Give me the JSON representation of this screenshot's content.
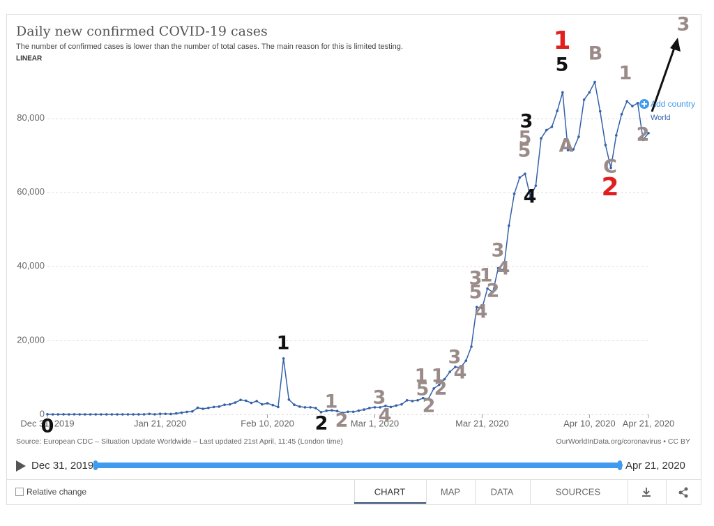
{
  "chart_data": {
    "type": "line",
    "title": "Daily new confirmed COVID-19 cases",
    "subtitle": "The number of confirmed cases is lower than the number of total cases. The main reason for this is limited testing.",
    "scale_label": "LINEAR",
    "x": [
      "2019-12-31",
      "2020-01-01",
      "2020-01-02",
      "2020-01-03",
      "2020-01-04",
      "2020-01-05",
      "2020-01-06",
      "2020-01-07",
      "2020-01-08",
      "2020-01-09",
      "2020-01-10",
      "2020-01-11",
      "2020-01-12",
      "2020-01-13",
      "2020-01-14",
      "2020-01-15",
      "2020-01-16",
      "2020-01-17",
      "2020-01-18",
      "2020-01-19",
      "2020-01-20",
      "2020-01-21",
      "2020-01-22",
      "2020-01-23",
      "2020-01-24",
      "2020-01-25",
      "2020-01-26",
      "2020-01-27",
      "2020-01-28",
      "2020-01-29",
      "2020-01-30",
      "2020-01-31",
      "2020-02-01",
      "2020-02-02",
      "2020-02-03",
      "2020-02-04",
      "2020-02-05",
      "2020-02-06",
      "2020-02-07",
      "2020-02-08",
      "2020-02-09",
      "2020-02-10",
      "2020-02-11",
      "2020-02-12",
      "2020-02-13",
      "2020-02-14",
      "2020-02-15",
      "2020-02-16",
      "2020-02-17",
      "2020-02-18",
      "2020-02-19",
      "2020-02-20",
      "2020-02-21",
      "2020-02-22",
      "2020-02-23",
      "2020-02-24",
      "2020-02-25",
      "2020-02-26",
      "2020-02-27",
      "2020-02-28",
      "2020-02-29",
      "2020-03-01",
      "2020-03-02",
      "2020-03-03",
      "2020-03-04",
      "2020-03-05",
      "2020-03-06",
      "2020-03-07",
      "2020-03-08",
      "2020-03-09",
      "2020-03-10",
      "2020-03-11",
      "2020-03-12",
      "2020-03-13",
      "2020-03-14",
      "2020-03-15",
      "2020-03-16",
      "2020-03-17",
      "2020-03-18",
      "2020-03-19",
      "2020-03-20",
      "2020-03-21",
      "2020-03-22",
      "2020-03-23",
      "2020-03-24",
      "2020-03-25",
      "2020-03-26",
      "2020-03-27",
      "2020-03-28",
      "2020-03-29",
      "2020-03-30",
      "2020-03-31",
      "2020-04-01",
      "2020-04-02",
      "2020-04-03",
      "2020-04-04",
      "2020-04-05",
      "2020-04-06",
      "2020-04-07",
      "2020-04-08",
      "2020-04-09",
      "2020-04-10",
      "2020-04-11",
      "2020-04-12",
      "2020-04-13",
      "2020-04-14",
      "2020-04-15",
      "2020-04-16",
      "2020-04-17",
      "2020-04-18",
      "2020-04-19",
      "2020-04-20",
      "2020-04-21"
    ],
    "values": [
      27,
      0,
      0,
      17,
      0,
      15,
      0,
      0,
      0,
      0,
      0,
      0,
      0,
      0,
      0,
      0,
      0,
      4,
      17,
      136,
      19,
      151,
      140,
      97,
      266,
      453,
      673,
      800,
      1800,
      1500,
      1750,
      2000,
      2100,
      2600,
      2700,
      3200,
      3900,
      3700,
      3100,
      3600,
      2700,
      3000,
      2500,
      2000,
      15100,
      4000,
      2600,
      2100,
      1900,
      1900,
      1700,
      600,
      1000,
      1100,
      900,
      400,
      700,
      700,
      1000,
      1300,
      1700,
      1900,
      1900,
      2300,
      2000,
      2400,
      2700,
      3800,
      3600,
      3800,
      4400,
      4200,
      7000,
      8000,
      9500,
      11500,
      12800,
      12700,
      14500,
      18300,
      29000,
      28700,
      34000,
      33000,
      39500,
      39000,
      51000,
      59600,
      64000,
      65000,
      58700,
      61800,
      74600,
      76800,
      77700,
      82000,
      87000,
      71400,
      71600,
      75000,
      85000,
      87000,
      89800,
      81900,
      72800,
      66600,
      75400,
      81100,
      84600,
      83300,
      84100,
      74200,
      76000
    ],
    "series_name": "World",
    "color": "#3360a9",
    "xlim": [
      "2019-12-31",
      "2020-04-21"
    ],
    "xticks": [
      {
        "value": "2019-12-31",
        "label": "Dec 31, 2019"
      },
      {
        "value": "2020-01-21",
        "label": "Jan 21, 2020"
      },
      {
        "value": "2020-02-10",
        "label": "Feb 10, 2020"
      },
      {
        "value": "2020-03-01",
        "label": "Mar 1, 2020"
      },
      {
        "value": "2020-03-21",
        "label": "Mar 21, 2020"
      },
      {
        "value": "2020-04-10",
        "label": "Apr 10, 2020"
      },
      {
        "value": "2020-04-21",
        "label": "Apr 21, 2020"
      }
    ],
    "ylim": [
      0,
      95000
    ],
    "yticks": [
      0,
      {
        "value": 20000,
        "label": "20,000"
      },
      {
        "value": 40000,
        "label": "40,000"
      },
      {
        "value": 60000,
        "label": "60,000"
      },
      {
        "value": 80000,
        "label": "80,000"
      }
    ],
    "grid": true,
    "source": "Source: European CDC – Situation Update Worldwide – Last updated 21st April, 11:45 (London time)",
    "credit": "OurWorldInData.org/coronavirus • CC BY",
    "annotations": [
      {
        "text": "0",
        "color": "#111111"
      },
      {
        "text": "1",
        "color": "#111111"
      },
      {
        "text": "2",
        "color": "#111111"
      },
      {
        "text": "1",
        "color": "#9a8b88"
      },
      {
        "text": "2",
        "color": "#9a8b88"
      },
      {
        "text": "3",
        "color": "#9a8b88"
      },
      {
        "text": "4",
        "color": "#9a8b88"
      },
      {
        "text": "1",
        "color": "#9a8b88"
      },
      {
        "text": "5",
        "color": "#9a8b88"
      },
      {
        "text": "2",
        "color": "#9a8b88"
      },
      {
        "text": "1",
        "color": "#9a8b88"
      },
      {
        "text": "2",
        "color": "#9a8b88"
      },
      {
        "text": "3",
        "color": "#9a8b88"
      },
      {
        "text": "4",
        "color": "#9a8b88"
      },
      {
        "text": "3",
        "color": "#9a8b88"
      },
      {
        "text": "5",
        "color": "#9a8b88"
      },
      {
        "text": "4",
        "color": "#9a8b88"
      },
      {
        "text": "1",
        "color": "#9a8b88"
      },
      {
        "text": "2",
        "color": "#9a8b88"
      },
      {
        "text": "3",
        "color": "#9a8b88"
      },
      {
        "text": "4",
        "color": "#9a8b88"
      },
      {
        "text": "3",
        "color": "#111111"
      },
      {
        "text": "5",
        "color": "#9a8b88"
      },
      {
        "text": "5",
        "color": "#9a8b88"
      },
      {
        "text": "4",
        "color": "#111111"
      },
      {
        "text": "1",
        "color": "#e0201f"
      },
      {
        "text": "5",
        "color": "#111111"
      },
      {
        "text": "A",
        "color": "#9a8b88"
      },
      {
        "text": "B",
        "color": "#9a8b88"
      },
      {
        "text": "C",
        "color": "#9a8b88"
      },
      {
        "text": "2",
        "color": "#e0201f"
      },
      {
        "text": "1",
        "color": "#9a8b88"
      },
      {
        "text": "2",
        "color": "#9a8b88"
      },
      {
        "text": "3",
        "color": "#9a8b88"
      }
    ]
  },
  "ui": {
    "add_country": "Add country",
    "relative_change": "Relative change",
    "tabs": [
      "CHART",
      "MAP",
      "DATA",
      "SOURCES"
    ]
  }
}
